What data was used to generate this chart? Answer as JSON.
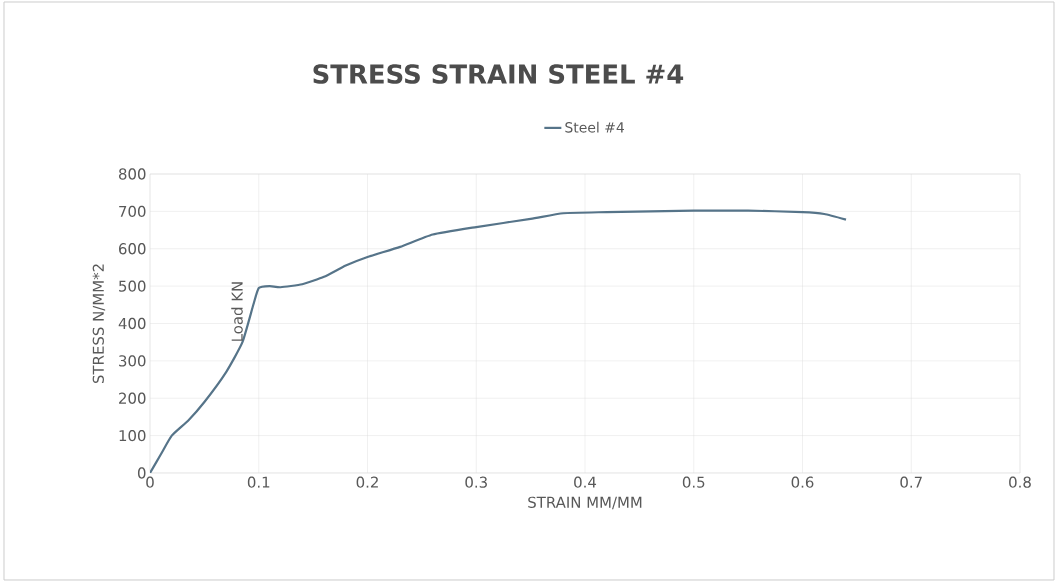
{
  "chart_data": {
    "type": "line",
    "title": "STRESS STRAIN STEEL #4",
    "xlabel": "STRAIN MM/MM",
    "ylabel": "STRESS N/MM*2",
    "annotations": [
      "Load KN"
    ],
    "series": [
      {
        "name": "Steel #4",
        "color": "#567489",
        "x": [
          0,
          0.01,
          0.02,
          0.035,
          0.05,
          0.07,
          0.085,
          0.095,
          0.1,
          0.11,
          0.12,
          0.14,
          0.16,
          0.18,
          0.2,
          0.23,
          0.26,
          0.3,
          0.35,
          0.38,
          0.42,
          0.5,
          0.55,
          0.6,
          0.62,
          0.64
        ],
        "values": [
          0,
          50,
          100,
          140,
          190,
          270,
          350,
          450,
          495,
          500,
          497,
          505,
          525,
          555,
          578,
          605,
          638,
          658,
          680,
          695,
          698,
          702,
          702,
          698,
          693,
          678
        ]
      }
    ],
    "xlim": [
      0,
      0.8
    ],
    "xticks": [
      0,
      0.1,
      0.2,
      0.3,
      0.4,
      0.5,
      0.6,
      0.7,
      0.8
    ],
    "ylim": [
      0,
      800
    ],
    "yticks": [
      0,
      100,
      200,
      300,
      400,
      500,
      600,
      700,
      800
    ],
    "grid": true,
    "legend": "top",
    "marker": "none",
    "line_style": "solid"
  }
}
